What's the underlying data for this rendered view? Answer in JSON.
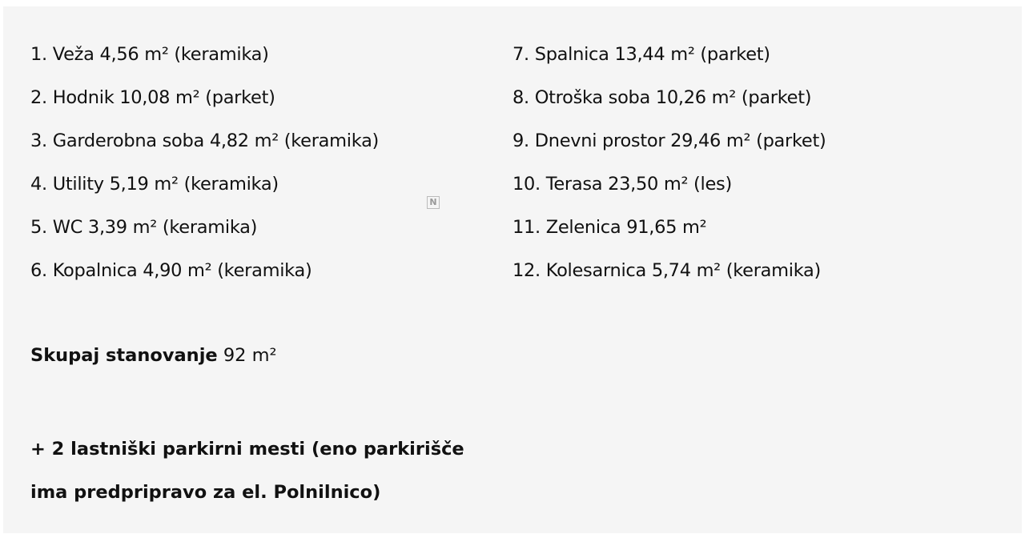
{
  "rooms_left": [
    "1. Veža 4,56 m² (keramika)",
    "2. Hodnik 10,08 m² (parket)",
    "3. Garderobna soba 4,82 m² (keramika)",
    "4. Utility 5,19 m² (keramika)",
    "5. WC 3,39 m² (keramika)",
    "6. Kopalnica 4,90 m² (keramika)"
  ],
  "rooms_right": [
    "7. Spalnica 13,44 m² (parket)",
    "8. Otroška soba 10,26 m² (parket)",
    "9. Dnevni prostor 29,46 m² (parket)",
    "10. Terasa 23,50 m² (les)",
    "11. Zelenica 91,65 m²",
    "12. Kolesarnica 5,74 m² (keramika)"
  ],
  "total": {
    "label": "Skupaj stanovanje",
    "value": "92 m²"
  },
  "parking": [
    "+ 2 lastniški parkirni mesti (eno parkirišče",
    "ima predpripravo za el. Polnilnico)"
  ],
  "watermark_icon": "N"
}
